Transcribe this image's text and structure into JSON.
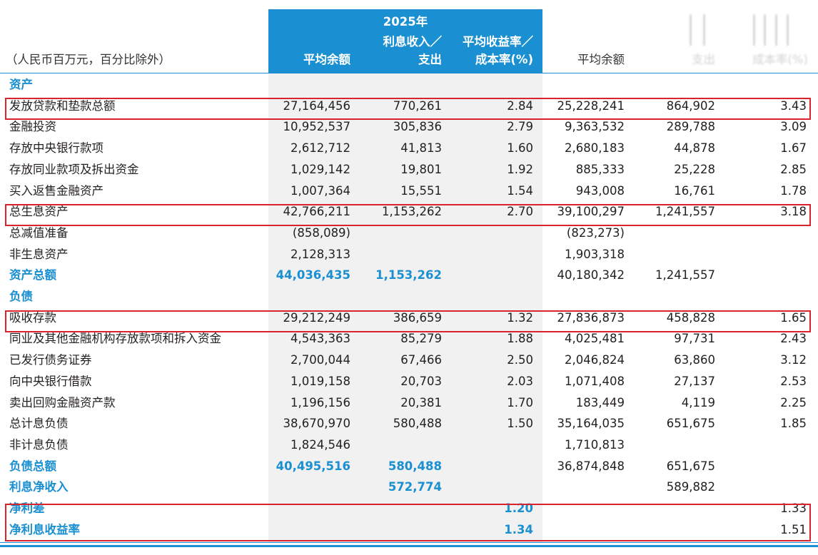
{
  "header": {
    "unit_note": "（人民币百万元，百分比除外）",
    "year": "2025年",
    "col_avg_balance": "平均余额",
    "col_interest_line1": "利息收入／",
    "col_interest_line2": "支出",
    "col_rate_line1": "平均收益率／",
    "col_rate_line2": "成本率(%)",
    "prior_avg_balance": "平均余额",
    "prior_interest_partial": "支出",
    "prior_rate_partial": "成本率(%)"
  },
  "rows": [
    {
      "label": "资产",
      "type": "section",
      "c1": "",
      "c2": "",
      "c3": "",
      "c4": "",
      "c5": "",
      "c6": ""
    },
    {
      "label": "发放贷款和垫款总额",
      "type": "normal",
      "c1": "27,164,456",
      "c2": "770,261",
      "c3": "2.84",
      "c4": "25,228,241",
      "c5": "864,902",
      "c6": "3.43"
    },
    {
      "label": "金融投资",
      "type": "normal",
      "c1": "10,952,537",
      "c2": "305,836",
      "c3": "2.79",
      "c4": "9,363,532",
      "c5": "289,788",
      "c6": "3.09"
    },
    {
      "label": "存放中央银行款项",
      "type": "normal",
      "c1": "2,612,712",
      "c2": "41,813",
      "c3": "1.60",
      "c4": "2,680,183",
      "c5": "44,878",
      "c6": "1.67"
    },
    {
      "label": "存放同业款项及拆出资金",
      "type": "normal",
      "c1": "1,029,142",
      "c2": "19,801",
      "c3": "1.92",
      "c4": "885,333",
      "c5": "25,228",
      "c6": "2.85"
    },
    {
      "label": "买入返售金融资产",
      "type": "normal",
      "c1": "1,007,364",
      "c2": "15,551",
      "c3": "1.54",
      "c4": "943,008",
      "c5": "16,761",
      "c6": "1.78"
    },
    {
      "label": "总生息资产",
      "type": "normal",
      "c1": "42,766,211",
      "c2": "1,153,262",
      "c3": "2.70",
      "c4": "39,100,297",
      "c5": "1,241,557",
      "c6": "3.18"
    },
    {
      "label": "总减值准备",
      "type": "normal",
      "c1": "(858,089)",
      "c2": "",
      "c3": "",
      "c4": "(823,273)",
      "c5": "",
      "c6": ""
    },
    {
      "label": "非生息资产",
      "type": "normal",
      "c1": "2,128,313",
      "c2": "",
      "c3": "",
      "c4": "1,903,318",
      "c5": "",
      "c6": ""
    },
    {
      "label": "资产总额",
      "type": "blue",
      "c1": "44,036,435",
      "c2": "1,153,262",
      "c3": "",
      "c4": "40,180,342",
      "c5": "1,241,557",
      "c6": ""
    },
    {
      "label": "负债",
      "type": "section",
      "c1": "",
      "c2": "",
      "c3": "",
      "c4": "",
      "c5": "",
      "c6": ""
    },
    {
      "label": "吸收存款",
      "type": "normal",
      "c1": "29,212,249",
      "c2": "386,659",
      "c3": "1.32",
      "c4": "27,836,873",
      "c5": "458,828",
      "c6": "1.65"
    },
    {
      "label": "同业及其他金融机构存放款项和拆入资金",
      "type": "normal",
      "c1": "4,543,363",
      "c2": "85,279",
      "c3": "1.88",
      "c4": "4,025,481",
      "c5": "97,731",
      "c6": "2.43"
    },
    {
      "label": "已发行债务证券",
      "type": "normal",
      "c1": "2,700,044",
      "c2": "67,466",
      "c3": "2.50",
      "c4": "2,046,824",
      "c5": "63,860",
      "c6": "3.12"
    },
    {
      "label": "向中央银行借款",
      "type": "normal",
      "c1": "1,019,158",
      "c2": "20,703",
      "c3": "2.03",
      "c4": "1,071,408",
      "c5": "27,137",
      "c6": "2.53"
    },
    {
      "label": "卖出回购金融资产款",
      "type": "normal",
      "c1": "1,196,156",
      "c2": "20,381",
      "c3": "1.70",
      "c4": "183,449",
      "c5": "4,119",
      "c6": "2.25"
    },
    {
      "label": "总计息负债",
      "type": "normal",
      "c1": "38,670,970",
      "c2": "580,488",
      "c3": "1.50",
      "c4": "35,164,035",
      "c5": "651,675",
      "c6": "1.85"
    },
    {
      "label": "非计息负债",
      "type": "normal",
      "c1": "1,824,546",
      "c2": "",
      "c3": "",
      "c4": "1,710,813",
      "c5": "",
      "c6": ""
    },
    {
      "label": "负债总额",
      "type": "blue",
      "c1": "40,495,516",
      "c2": "580,488",
      "c3": "",
      "c4": "36,874,848",
      "c5": "651,675",
      "c6": ""
    },
    {
      "label": "利息净收入",
      "type": "blue",
      "c1": "",
      "c2": "572,774",
      "c3": "",
      "c4": "",
      "c5": "589,882",
      "c6": ""
    },
    {
      "label": "净利差",
      "type": "blue",
      "c1": "",
      "c2": "",
      "c3": "1.20",
      "c4": "",
      "c5": "",
      "c6": "1.33"
    },
    {
      "label": "净利息收益率",
      "type": "blue",
      "c1": "",
      "c2": "",
      "c3": "1.34",
      "c4": "",
      "c5": "",
      "c6": "1.51"
    }
  ],
  "accent_color": "#1a8fd1",
  "highlight_color": "#d9232d"
}
